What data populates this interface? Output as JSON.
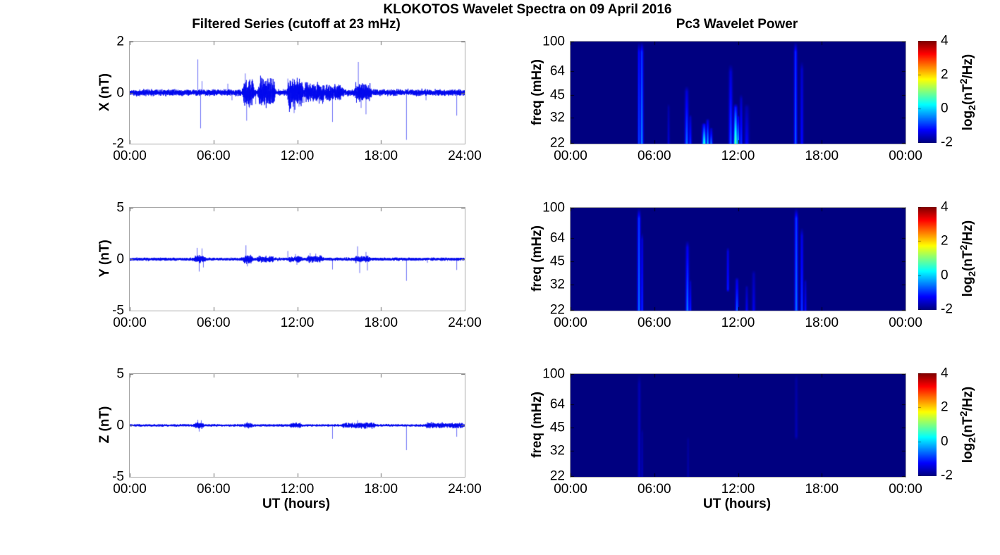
{
  "page": {
    "title": "KLOKOTOS Wavelet Spectra on 09 April 2016",
    "left_subtitle": "Filtered Series (cutoff at 23 mHz)",
    "right_subtitle": "Pc3 Wavelet Power",
    "xlabel": "UT (hours)"
  },
  "colors": {
    "line": "#0008ee",
    "panel_border": "#a6a6a6",
    "heat_background": "#000090"
  },
  "colorbar": {
    "range": [
      -2,
      4
    ],
    "tick_values": [
      4,
      2,
      0,
      -2
    ],
    "tick_labels": [
      "4",
      "2",
      "0",
      "-2"
    ],
    "label_parts": {
      "pre": "log",
      "sub": "2",
      "mid": "(nT",
      "sup": "2",
      "suf": "/Hz)"
    }
  },
  "chart_data": [
    {
      "id": "ts-x",
      "type": "line",
      "seed": 11,
      "ylabel": "X (nT)",
      "ylim": [
        -2,
        2
      ],
      "ytick_values": [
        2,
        0,
        -2
      ],
      "ytick_labels": [
        "2",
        "0",
        "-2"
      ],
      "xlim": [
        0,
        24
      ],
      "xtick_values": [
        0,
        6,
        12,
        18,
        24
      ],
      "xtick_labels": [
        "00:00",
        "06:00",
        "12:00",
        "18:00",
        "24:00"
      ],
      "noise_base": 0.06,
      "bursts": [
        [
          8.2,
          8.8,
          0.2
        ],
        [
          9.3,
          10.3,
          0.22
        ],
        [
          11.4,
          12.3,
          0.24
        ],
        [
          12.6,
          13.9,
          0.12
        ],
        [
          14.0,
          15.2,
          0.09
        ],
        [
          16.2,
          17.2,
          0.11
        ]
      ],
      "spikes": [
        [
          4.85,
          1.3
        ],
        [
          5.05,
          -1.4
        ],
        [
          5.15,
          0.45
        ],
        [
          7.0,
          0.35
        ],
        [
          7.3,
          -0.3
        ],
        [
          8.25,
          0.75
        ],
        [
          8.35,
          -1.1
        ],
        [
          8.55,
          -0.6
        ],
        [
          9.0,
          -0.45
        ],
        [
          9.45,
          0.45
        ],
        [
          9.6,
          -0.5
        ],
        [
          10.0,
          0.4
        ],
        [
          10.3,
          -0.35
        ],
        [
          11.3,
          0.55
        ],
        [
          11.75,
          -0.8
        ],
        [
          11.95,
          0.45
        ],
        [
          12.1,
          -0.55
        ],
        [
          12.45,
          -0.4
        ],
        [
          13.4,
          -0.35
        ],
        [
          14.5,
          -1.15
        ],
        [
          15.0,
          -0.3
        ],
        [
          16.35,
          1.2
        ],
        [
          16.55,
          -0.6
        ],
        [
          16.9,
          -0.85
        ],
        [
          19.8,
          -1.85
        ],
        [
          21.2,
          -0.3
        ],
        [
          23.4,
          -0.9
        ]
      ]
    },
    {
      "id": "ts-y",
      "type": "line",
      "seed": 22,
      "ylabel": "Y (nT)",
      "ylim": [
        -5,
        5
      ],
      "ytick_values": [
        5,
        0,
        -5
      ],
      "ytick_labels": [
        "5",
        "0",
        "-5"
      ],
      "xlim": [
        0,
        24
      ],
      "xtick_values": [
        0,
        6,
        12,
        18,
        24
      ],
      "xtick_labels": [
        "00:00",
        "06:00",
        "12:00",
        "18:00",
        "24:00"
      ],
      "noise_base": 0.07,
      "bursts": [
        [
          4.7,
          5.3,
          0.1
        ],
        [
          8.2,
          8.7,
          0.13
        ],
        [
          9.2,
          10.2,
          0.08
        ],
        [
          11.5,
          12.2,
          0.1
        ],
        [
          12.8,
          13.8,
          0.08
        ],
        [
          16.2,
          17.1,
          0.09
        ]
      ],
      "spikes": [
        [
          4.8,
          1.1
        ],
        [
          4.95,
          -1.2
        ],
        [
          5.15,
          1.05
        ],
        [
          5.25,
          -0.8
        ],
        [
          8.3,
          1.35
        ],
        [
          8.4,
          -0.7
        ],
        [
          9.3,
          0.35
        ],
        [
          9.6,
          -0.3
        ],
        [
          11.3,
          0.8
        ],
        [
          11.85,
          0.5
        ],
        [
          11.95,
          -0.55
        ],
        [
          12.9,
          0.6
        ],
        [
          13.3,
          0.55
        ],
        [
          13.6,
          0.4
        ],
        [
          14.5,
          -1.0
        ],
        [
          16.3,
          1.25
        ],
        [
          16.45,
          -1.35
        ],
        [
          16.9,
          0.7
        ],
        [
          17.0,
          -1.1
        ],
        [
          19.8,
          -2.1
        ],
        [
          21.3,
          -0.35
        ],
        [
          23.4,
          -1.05
        ]
      ]
    },
    {
      "id": "ts-z",
      "type": "line",
      "seed": 33,
      "ylabel": "Z (nT)",
      "ylim": [
        -5,
        5
      ],
      "ytick_values": [
        5,
        0,
        -5
      ],
      "ytick_labels": [
        "5",
        "0",
        "-5"
      ],
      "xlim": [
        0,
        24
      ],
      "xtick_values": [
        0,
        6,
        12,
        18,
        24
      ],
      "xtick_labels": [
        "00:00",
        "06:00",
        "12:00",
        "18:00",
        "24:00"
      ],
      "noise_base": 0.055,
      "bursts": [
        [
          4.7,
          5.2,
          0.09
        ],
        [
          8.3,
          8.7,
          0.07
        ],
        [
          11.6,
          12.2,
          0.06
        ],
        [
          15.3,
          17.5,
          0.08
        ],
        [
          21.3,
          23.9,
          0.07
        ]
      ],
      "spikes": [
        [
          4.85,
          0.55
        ],
        [
          4.95,
          -0.6
        ],
        [
          5.1,
          0.5
        ],
        [
          8.4,
          0.35
        ],
        [
          8.5,
          -0.3
        ],
        [
          11.9,
          0.3
        ],
        [
          12.0,
          -0.25
        ],
        [
          14.5,
          -1.3
        ],
        [
          16.3,
          0.5
        ],
        [
          16.8,
          -0.35
        ],
        [
          19.8,
          -2.4
        ],
        [
          21.5,
          -0.3
        ],
        [
          23.4,
          -1.1
        ]
      ]
    },
    {
      "id": "wv-x",
      "type": "heatmap",
      "ylabel": "freq (mHz)",
      "freq_range": [
        22,
        100
      ],
      "ytick_values": [
        100,
        64,
        45,
        32,
        22
      ],
      "ytick_labels": [
        "100",
        "64",
        "45",
        "32",
        "22"
      ],
      "xlim": [
        0,
        24
      ],
      "xtick_values": [
        0,
        6,
        12,
        18,
        24
      ],
      "xtick_labels": [
        "00:00",
        "06:00",
        "12:00",
        "18:00",
        "00:00"
      ],
      "clim": [
        -2,
        4
      ],
      "background_value": -2,
      "streaks": [
        [
          4.88,
          22,
          100,
          -0.8,
          -1.2,
          1.2
        ],
        [
          5.08,
          22,
          100,
          -0.45,
          -1.0,
          1.6
        ],
        [
          7.0,
          22,
          40,
          -1.5,
          -1.8,
          1.2
        ],
        [
          8.3,
          22,
          52,
          -0.6,
          -1.6,
          1.8
        ],
        [
          8.55,
          22,
          34,
          -0.95,
          -1.7,
          1.4
        ],
        [
          9.55,
          22,
          30,
          0.5,
          -1.4,
          1.8
        ],
        [
          9.8,
          22,
          32,
          -0.2,
          -1.6,
          1.5
        ],
        [
          10.05,
          22,
          28,
          -0.5,
          -1.7,
          1.4
        ],
        [
          11.45,
          22,
          72,
          -0.7,
          -1.6,
          1.8
        ],
        [
          11.8,
          22,
          40,
          0.9,
          -1.3,
          1.8
        ],
        [
          11.98,
          22,
          34,
          0.1,
          -1.5,
          1.4
        ],
        [
          12.2,
          22,
          46,
          -0.9,
          -1.7,
          1.4
        ],
        [
          12.6,
          22,
          40,
          -1.25,
          -1.8,
          2.2
        ],
        [
          16.1,
          22,
          100,
          -0.7,
          -1.05,
          1.5
        ],
        [
          16.55,
          22,
          75,
          -1.2,
          -1.6,
          1.5
        ]
      ]
    },
    {
      "id": "wv-y",
      "type": "heatmap",
      "ylabel": "freq (mHz)",
      "freq_range": [
        22,
        100
      ],
      "ytick_values": [
        100,
        64,
        45,
        32,
        22
      ],
      "ytick_labels": [
        "100",
        "64",
        "45",
        "32",
        "22"
      ],
      "xlim": [
        0,
        24
      ],
      "xtick_values": [
        0,
        6,
        12,
        18,
        24
      ],
      "xtick_labels": [
        "00:00",
        "06:00",
        "12:00",
        "18:00",
        "00:00"
      ],
      "clim": [
        -2,
        4
      ],
      "background_value": -2,
      "streaks": [
        [
          4.88,
          22,
          100,
          -0.55,
          -0.95,
          1.5
        ],
        [
          5.1,
          22,
          70,
          -0.95,
          -1.5,
          1.2
        ],
        [
          8.35,
          22,
          62,
          -0.5,
          -1.45,
          1.6
        ],
        [
          8.55,
          22,
          35,
          -1.0,
          -1.7,
          1.2
        ],
        [
          11.25,
          30,
          56,
          -1.05,
          -1.45,
          1.2
        ],
        [
          11.9,
          22,
          36,
          -0.65,
          -1.5,
          1.5
        ],
        [
          12.6,
          22,
          32,
          -1.3,
          -1.75,
          1.3
        ],
        [
          13.1,
          22,
          40,
          -1.35,
          -1.75,
          1.6
        ],
        [
          16.15,
          22,
          100,
          -0.55,
          -0.95,
          1.6
        ],
        [
          16.55,
          22,
          75,
          -0.9,
          -1.45,
          1.4
        ],
        [
          16.8,
          22,
          35,
          -1.2,
          -1.7,
          1.2
        ]
      ]
    },
    {
      "id": "wv-z",
      "type": "heatmap",
      "ylabel": "freq (mHz)",
      "freq_range": [
        22,
        100
      ],
      "ytick_values": [
        100,
        64,
        45,
        32,
        22
      ],
      "ytick_labels": [
        "100",
        "64",
        "45",
        "32",
        "22"
      ],
      "xlim": [
        0,
        24
      ],
      "xtick_values": [
        0,
        6,
        12,
        18,
        24
      ],
      "xtick_labels": [
        "00:00",
        "06:00",
        "12:00",
        "18:00",
        "00:00"
      ],
      "clim": [
        -2,
        4
      ],
      "background_value": -2,
      "streaks": [
        [
          4.9,
          22,
          100,
          -1.55,
          -1.72,
          1.5
        ],
        [
          5.1,
          22,
          45,
          -1.65,
          -1.82,
          1.2
        ],
        [
          8.4,
          22,
          40,
          -1.75,
          -1.87,
          1.2
        ],
        [
          16.15,
          40,
          100,
          -1.68,
          -1.82,
          1.5
        ]
      ]
    }
  ]
}
